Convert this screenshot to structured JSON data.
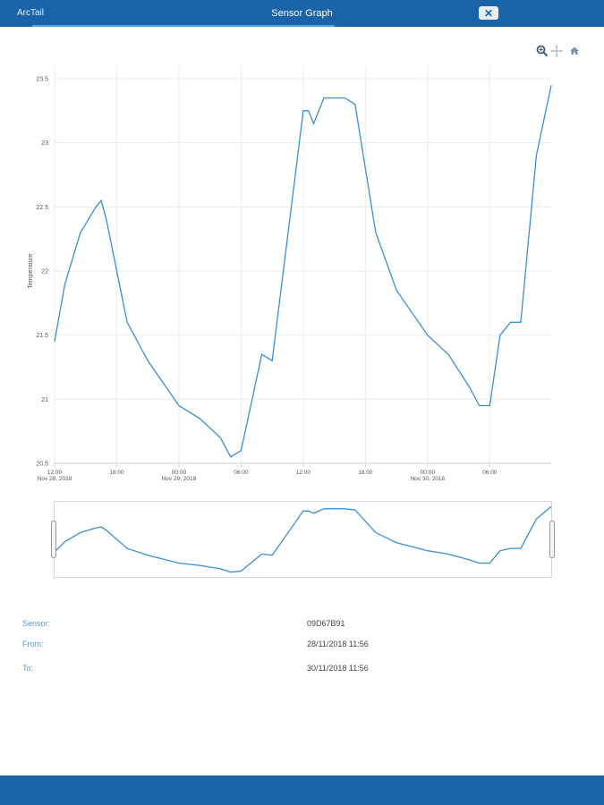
{
  "header": {
    "brand": "ArcTail",
    "title": "Sensor Graph",
    "close_icon": "close-icon"
  },
  "toolbar": {
    "icons": [
      "zoom-icon",
      "pan-icon",
      "home-icon"
    ]
  },
  "colors": {
    "header": "#1a63a8",
    "line": "#3a8fd6",
    "label": "#5b9bd5"
  },
  "chart_data": {
    "type": "line",
    "title": "",
    "xlabel": "",
    "ylabel": "Temperature",
    "ylim": [
      20.5,
      23.5
    ],
    "yticks": [
      "20.5",
      "21",
      "21.5",
      "22",
      "22.5",
      "23",
      "23.5"
    ],
    "xticks": [
      {
        "time": "12:00",
        "date": "Nov 28, 2018"
      },
      {
        "time": "18:00",
        "date": ""
      },
      {
        "time": "00:00",
        "date": "Nov 29, 2018"
      },
      {
        "time": "06:00",
        "date": ""
      },
      {
        "time": "12:00",
        "date": ""
      },
      {
        "time": "18:00",
        "date": ""
      },
      {
        "time": "00:00",
        "date": "Nov 30, 2018"
      },
      {
        "time": "06:00",
        "date": ""
      }
    ],
    "xlim": [
      "2018-11-28 12:00",
      "2018-11-30 11:56"
    ],
    "grid": true,
    "series": [
      {
        "x": [
          "2018-11-28 12:00",
          "2018-11-28 13:00",
          "2018-11-28 14:30",
          "2018-11-28 16:00",
          "2018-11-28 16:30",
          "2018-11-28 17:00",
          "2018-11-28 19:00",
          "2018-11-28 21:00",
          "2018-11-29 00:00",
          "2018-11-29 02:00",
          "2018-11-29 04:00",
          "2018-11-29 05:00",
          "2018-11-29 06:00",
          "2018-11-29 08:00",
          "2018-11-29 09:00",
          "2018-11-29 12:00",
          "2018-11-29 12:30",
          "2018-11-29 13:00",
          "2018-11-29 14:00",
          "2018-11-29 16:00",
          "2018-11-29 17:00",
          "2018-11-29 19:00",
          "2018-11-29 21:00",
          "2018-11-30 00:00",
          "2018-11-30 02:00",
          "2018-11-30 04:00",
          "2018-11-30 05:00",
          "2018-11-30 06:00",
          "2018-11-30 07:00",
          "2018-11-30 08:00",
          "2018-11-30 09:00",
          "2018-11-30 10:30",
          "2018-11-30 11:56"
        ],
        "values": [
          21.45,
          21.9,
          22.3,
          22.5,
          22.55,
          22.4,
          21.6,
          21.3,
          20.95,
          20.85,
          20.7,
          20.55,
          20.6,
          21.35,
          21.3,
          23.25,
          23.25,
          23.15,
          23.35,
          23.35,
          23.3,
          22.3,
          21.85,
          21.5,
          21.35,
          21.1,
          20.95,
          20.95,
          21.5,
          21.6,
          21.6,
          22.9,
          23.45
        ]
      }
    ]
  },
  "info": {
    "sensor_label": "Sensor:",
    "sensor_value": "09D67B91",
    "from_label": "From:",
    "from_value": "28/11/2018 11:56",
    "to_label": "To:",
    "to_value": "30/11/2018 11:56"
  }
}
